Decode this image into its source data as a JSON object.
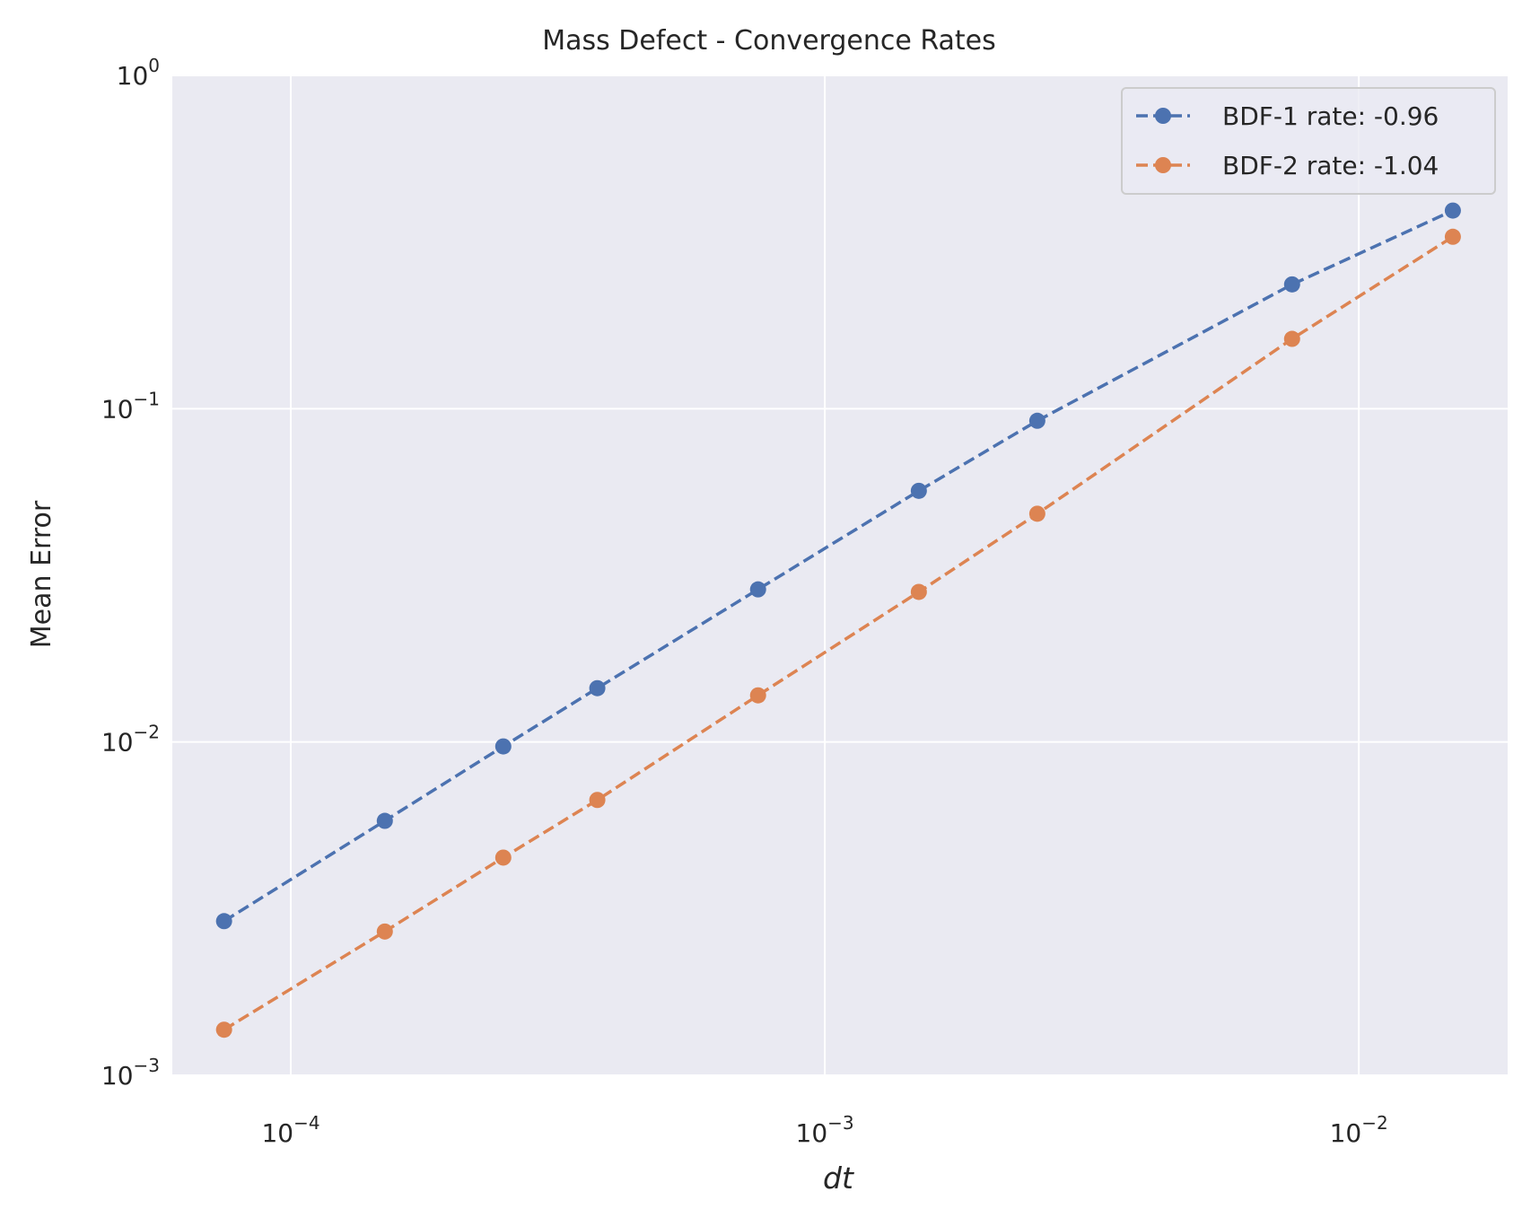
{
  "chart_data": {
    "type": "line",
    "title": "Mass Defect - Convergence Rates",
    "xlabel": "dt",
    "ylabel": "Mean Error",
    "xscale": "log",
    "yscale": "log",
    "xlim": [
      6e-05,
      0.019
    ],
    "ylim": [
      0.001,
      1
    ],
    "grid": true,
    "legend_position": "top-right",
    "x_ticks": [
      {
        "value": 0.0001,
        "base": "10",
        "exp": "−4"
      },
      {
        "value": 0.001,
        "base": "10",
        "exp": "−3"
      },
      {
        "value": 0.01,
        "base": "10",
        "exp": "−2"
      }
    ],
    "y_ticks": [
      {
        "value": 1,
        "base": "10",
        "exp": "0"
      },
      {
        "value": 0.1,
        "base": "10",
        "exp": "−1"
      },
      {
        "value": 0.01,
        "base": "10",
        "exp": "−2"
      },
      {
        "value": 0.001,
        "base": "10",
        "exp": "−3"
      }
    ],
    "x": [
      7.5e-05,
      0.00015,
      0.00025,
      0.000375,
      0.00075,
      0.0015,
      0.0025,
      0.0075,
      0.015
    ],
    "series": [
      {
        "name": "BDF-1 rate: -0.96",
        "color": "#4c72b0",
        "values": [
          0.0029,
          0.0058,
          0.0097,
          0.0145,
          0.0287,
          0.0567,
          0.092,
          0.236,
          0.393
        ]
      },
      {
        "name": "BDF-2 rate: -1.04",
        "color": "#dd8452",
        "values": [
          0.00137,
          0.0027,
          0.0045,
          0.0067,
          0.0138,
          0.0282,
          0.0484,
          0.162,
          0.328
        ]
      }
    ],
    "colors": {
      "axes_background": "#eaeaf2",
      "grid": "#ffffff"
    }
  }
}
